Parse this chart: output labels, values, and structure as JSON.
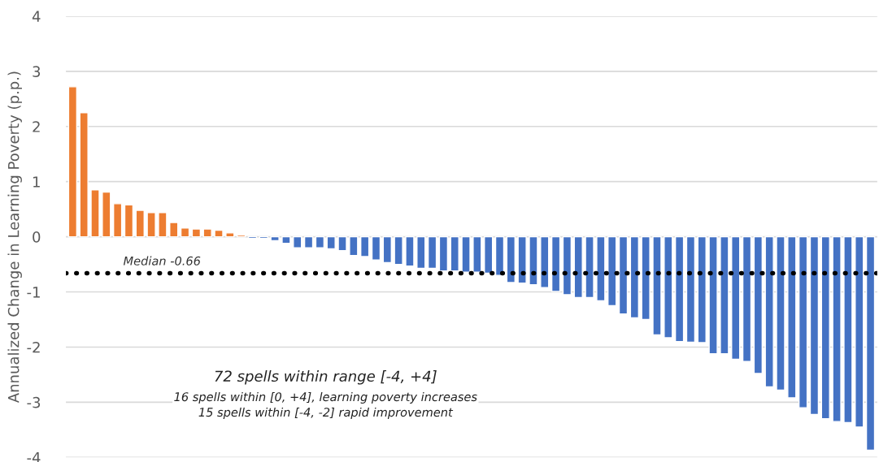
{
  "chart_data": {
    "type": "bar",
    "ylabel": "Annualized Change in Learning Poverty (p.p.)",
    "categories": [
      null,
      null,
      null,
      null,
      null,
      null,
      null,
      null,
      null,
      null,
      null,
      null,
      null,
      null,
      null,
      null,
      null,
      null,
      null,
      null,
      null,
      null,
      null,
      null,
      null,
      null,
      null,
      null,
      null,
      null,
      null,
      null,
      null,
      null,
      null,
      null,
      null,
      null,
      null,
      null,
      null,
      null,
      null,
      null,
      null,
      null,
      null,
      null,
      null,
      null,
      null,
      null,
      null,
      null,
      null,
      null,
      null,
      null,
      null,
      null,
      null,
      null,
      null,
      null,
      null,
      null,
      null,
      null,
      null,
      null,
      null,
      null
    ],
    "values": [
      2.72,
      2.25,
      0.85,
      0.81,
      0.6,
      0.58,
      0.48,
      0.44,
      0.44,
      0.26,
      0.16,
      0.14,
      0.14,
      0.12,
      0.07,
      0.03,
      -0.03,
      -0.03,
      -0.07,
      -0.12,
      -0.2,
      -0.2,
      -0.2,
      -0.22,
      -0.25,
      -0.34,
      -0.36,
      -0.42,
      -0.47,
      -0.5,
      -0.53,
      -0.57,
      -0.57,
      -0.62,
      -0.62,
      -0.64,
      -0.64,
      -0.66,
      -0.7,
      -0.83,
      -0.84,
      -0.87,
      -0.92,
      -0.99,
      -1.05,
      -1.1,
      -1.1,
      -1.16,
      -1.25,
      -1.4,
      -1.47,
      -1.5,
      -1.78,
      -1.83,
      -1.9,
      -1.91,
      -1.92,
      -2.12,
      -2.12,
      -2.22,
      -2.26,
      -2.48,
      -2.72,
      -2.78,
      -2.92,
      -3.1,
      -3.22,
      -3.3,
      -3.35,
      -3.37,
      -3.45,
      -3.87
    ],
    "colors": [
      "#ed7d31",
      "#ed7d31",
      "#ed7d31",
      "#ed7d31",
      "#ed7d31",
      "#ed7d31",
      "#ed7d31",
      "#ed7d31",
      "#ed7d31",
      "#ed7d31",
      "#ed7d31",
      "#ed7d31",
      "#ed7d31",
      "#ed7d31",
      "#ed7d31",
      "#ed7d31",
      "#4472c4",
      "#4472c4",
      "#4472c4",
      "#4472c4",
      "#4472c4",
      "#4472c4",
      "#4472c4",
      "#4472c4",
      "#4472c4",
      "#4472c4",
      "#4472c4",
      "#4472c4",
      "#4472c4",
      "#4472c4",
      "#4472c4",
      "#4472c4",
      "#4472c4",
      "#4472c4",
      "#4472c4",
      "#4472c4",
      "#4472c4",
      "#4472c4",
      "#4472c4",
      "#4472c4",
      "#4472c4",
      "#4472c4",
      "#4472c4",
      "#4472c4",
      "#4472c4",
      "#4472c4",
      "#4472c4",
      "#4472c4",
      "#4472c4",
      "#4472c4",
      "#4472c4",
      "#4472c4",
      "#4472c4",
      "#4472c4",
      "#4472c4",
      "#4472c4",
      "#4472c4",
      "#4472c4",
      "#4472c4",
      "#4472c4",
      "#4472c4",
      "#4472c4",
      "#4472c4",
      "#4472c4",
      "#4472c4",
      "#4472c4",
      "#4472c4",
      "#4472c4",
      "#4472c4",
      "#4472c4",
      "#4472c4",
      "#4472c4"
    ],
    "ylim": [
      -4,
      4
    ],
    "yticks": [
      -4,
      -3,
      -2,
      -1,
      0,
      1,
      2,
      3,
      4
    ],
    "grid": "y",
    "tick_labels": "y",
    "ref_lines": [
      {
        "axis": "y",
        "value": -0.66,
        "label": "Median -0.66",
        "color": "#000000",
        "line_style": "dotted"
      }
    ],
    "annotations": [
      "72 spells within range [-4, +4]",
      "16 spells within [0, +4], learning poverty increases",
      "15 spells within [-4, -2] rapid improvement"
    ]
  }
}
